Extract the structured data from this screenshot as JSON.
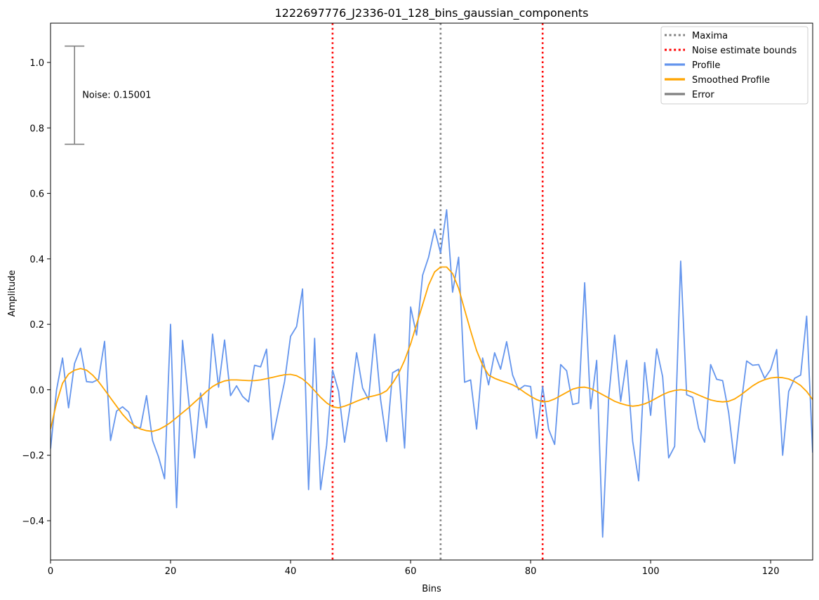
{
  "chart_data": {
    "type": "line",
    "title": "1222697776_J2336-01_128_bins_gaussian_components",
    "xlabel": "Bins",
    "ylabel": "Amplitude",
    "xlim": [
      0,
      127
    ],
    "ylim": [
      -0.52,
      1.12
    ],
    "xticks": [
      0,
      20,
      40,
      60,
      80,
      100,
      120
    ],
    "yticks": [
      -0.4,
      -0.2,
      0.0,
      0.2,
      0.4,
      0.6,
      0.8,
      1.0
    ],
    "xtick_labels": [
      "0",
      "20",
      "40",
      "60",
      "80",
      "100",
      "120"
    ],
    "ytick_labels": [
      "−0.4",
      "−0.2",
      "0.0",
      "0.2",
      "0.4",
      "0.6",
      "0.8",
      "1.0"
    ],
    "grid": false,
    "legend_position": "top-right",
    "legend": [
      {
        "label": "Maxima",
        "color": "#808080",
        "style": "dotted"
      },
      {
        "label": "Noise estimate bounds",
        "color": "#ff0000",
        "style": "dotted"
      },
      {
        "label": "Profile",
        "color": "#6495ed",
        "style": "solid"
      },
      {
        "label": "Smoothed Profile",
        "color": "#ffa500",
        "style": "solid"
      },
      {
        "label": "Error",
        "color": "#808080",
        "style": "solid"
      }
    ],
    "vlines": [
      {
        "x": 65,
        "color": "#808080",
        "role": "Maxima"
      },
      {
        "x": 47,
        "color": "#ff0000",
        "role": "Noise estimate bounds"
      },
      {
        "x": 82,
        "color": "#ff0000",
        "role": "Noise estimate bounds"
      }
    ],
    "error_bar": {
      "x": 4,
      "y_low": 0.75,
      "y_high": 1.05,
      "label": "Noise: 0.15001"
    },
    "series": [
      {
        "name": "Profile",
        "color": "#6495ed",
        "x": [
          0,
          1,
          2,
          3,
          4,
          5,
          6,
          7,
          8,
          9,
          10,
          11,
          12,
          13,
          14,
          15,
          16,
          17,
          18,
          19,
          20,
          21,
          22,
          23,
          24,
          25,
          26,
          27,
          28,
          29,
          30,
          31,
          32,
          33,
          34,
          35,
          36,
          37,
          38,
          39,
          40,
          41,
          42,
          43,
          44,
          45,
          46,
          47,
          48,
          49,
          50,
          51,
          52,
          53,
          54,
          55,
          56,
          57,
          58,
          59,
          60,
          61,
          62,
          63,
          64,
          65,
          66,
          67,
          68,
          69,
          70,
          71,
          72,
          73,
          74,
          75,
          76,
          77,
          78,
          79,
          80,
          81,
          82,
          83,
          84,
          85,
          86,
          87,
          88,
          89,
          90,
          91,
          92,
          93,
          94,
          95,
          96,
          97,
          98,
          99,
          100,
          101,
          102,
          103,
          104,
          105,
          106,
          107,
          108,
          109,
          110,
          111,
          112,
          113,
          114,
          115,
          116,
          117,
          118,
          119,
          120,
          121,
          122,
          123,
          124,
          125,
          126,
          127
        ],
        "y": [
          -0.18,
          0.0,
          0.097,
          -0.055,
          0.08,
          0.127,
          0.025,
          0.023,
          0.032,
          0.148,
          -0.155,
          -0.065,
          -0.052,
          -0.068,
          -0.117,
          -0.115,
          -0.018,
          -0.155,
          -0.205,
          -0.272,
          0.2,
          -0.36,
          0.151,
          -0.03,
          -0.208,
          -0.01,
          -0.116,
          0.17,
          0.008,
          0.152,
          -0.018,
          0.012,
          -0.02,
          -0.037,
          0.075,
          0.07,
          0.124,
          -0.152,
          -0.062,
          0.025,
          0.163,
          0.193,
          0.308,
          -0.305,
          0.157,
          -0.305,
          -0.17,
          0.06,
          -0.005,
          -0.16,
          -0.04,
          0.113,
          0.005,
          -0.03,
          0.17,
          -0.03,
          -0.158,
          0.052,
          0.063,
          -0.178,
          0.253,
          0.167,
          0.35,
          0.405,
          0.49,
          0.418,
          0.55,
          0.298,
          0.405,
          0.023,
          0.03,
          -0.12,
          0.097,
          0.015,
          0.113,
          0.063,
          0.147,
          0.045,
          0.0,
          0.013,
          0.01,
          -0.148,
          0.01,
          -0.12,
          -0.167,
          0.077,
          0.058,
          -0.045,
          -0.04,
          0.327,
          -0.058,
          0.09,
          -0.45,
          -0.025,
          0.167,
          -0.035,
          0.09,
          -0.157,
          -0.278,
          0.083,
          -0.078,
          0.125,
          0.04,
          -0.208,
          -0.173,
          0.393,
          -0.015,
          -0.023,
          -0.118,
          -0.16,
          0.077,
          0.032,
          0.028,
          -0.07,
          -0.225,
          -0.055,
          0.088,
          0.075,
          0.077,
          0.035,
          0.062,
          0.123,
          -0.2,
          -0.005,
          0.035,
          0.045,
          0.225,
          -0.192
        ]
      },
      {
        "name": "Smoothed Profile",
        "color": "#ffa500",
        "x": [
          0,
          1,
          2,
          3,
          4,
          5,
          6,
          7,
          8,
          9,
          10,
          11,
          12,
          13,
          14,
          15,
          16,
          17,
          18,
          19,
          20,
          21,
          22,
          23,
          24,
          25,
          26,
          27,
          28,
          29,
          30,
          31,
          32,
          33,
          34,
          35,
          36,
          37,
          38,
          39,
          40,
          41,
          42,
          43,
          44,
          45,
          46,
          47,
          48,
          49,
          50,
          51,
          52,
          53,
          54,
          55,
          56,
          57,
          58,
          59,
          60,
          61,
          62,
          63,
          64,
          65,
          66,
          67,
          68,
          69,
          70,
          71,
          72,
          73,
          74,
          75,
          76,
          77,
          78,
          79,
          80,
          81,
          82,
          83,
          84,
          85,
          86,
          87,
          88,
          89,
          90,
          91,
          92,
          93,
          94,
          95,
          96,
          97,
          98,
          99,
          100,
          101,
          102,
          103,
          104,
          105,
          106,
          107,
          108,
          109,
          110,
          111,
          112,
          113,
          114,
          115,
          116,
          117,
          118,
          119,
          120,
          121,
          122,
          123,
          124,
          125,
          126,
          127
        ],
        "y": [
          -0.12,
          -0.04,
          0.02,
          0.048,
          0.06,
          0.065,
          0.06,
          0.045,
          0.025,
          0.0,
          -0.025,
          -0.05,
          -0.075,
          -0.095,
          -0.11,
          -0.12,
          -0.125,
          -0.127,
          -0.122,
          -0.112,
          -0.1,
          -0.085,
          -0.07,
          -0.055,
          -0.038,
          -0.022,
          -0.005,
          0.01,
          0.02,
          0.027,
          0.03,
          0.03,
          0.029,
          0.028,
          0.028,
          0.03,
          0.034,
          0.038,
          0.042,
          0.046,
          0.047,
          0.043,
          0.033,
          0.017,
          -0.003,
          -0.023,
          -0.04,
          -0.052,
          -0.055,
          -0.05,
          -0.043,
          -0.035,
          -0.028,
          -0.022,
          -0.018,
          -0.013,
          -0.003,
          0.02,
          0.05,
          0.09,
          0.14,
          0.2,
          0.26,
          0.32,
          0.36,
          0.375,
          0.375,
          0.355,
          0.31,
          0.245,
          0.18,
          0.12,
          0.075,
          0.045,
          0.035,
          0.028,
          0.022,
          0.015,
          0.005,
          -0.008,
          -0.02,
          -0.03,
          -0.037,
          -0.035,
          -0.028,
          -0.018,
          -0.008,
          0.002,
          0.007,
          0.008,
          0.004,
          -0.005,
          -0.015,
          -0.025,
          -0.035,
          -0.042,
          -0.047,
          -0.05,
          -0.048,
          -0.043,
          -0.035,
          -0.025,
          -0.015,
          -0.007,
          -0.002,
          0.0,
          -0.002,
          -0.008,
          -0.016,
          -0.024,
          -0.031,
          -0.035,
          -0.037,
          -0.035,
          -0.028,
          -0.016,
          -0.002,
          0.012,
          0.023,
          0.031,
          0.036,
          0.038,
          0.037,
          0.033,
          0.025,
          0.013,
          -0.005,
          -0.03
        ]
      }
    ]
  }
}
